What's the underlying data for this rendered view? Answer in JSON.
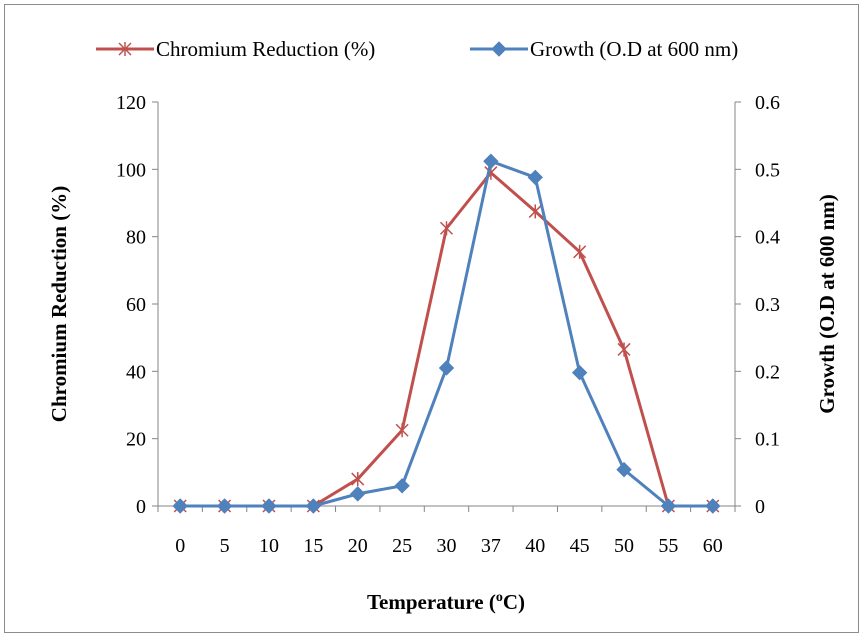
{
  "chart_data": {
    "type": "line",
    "categories": [
      "0",
      "5",
      "10",
      "15",
      "20",
      "25",
      "30",
      "37",
      "40",
      "45",
      "50",
      "55",
      "60"
    ],
    "series": [
      {
        "name": "Chromium Reduction (%)",
        "axis": "left",
        "color": "#c0504d",
        "marker": "star",
        "values": [
          0,
          0,
          0,
          0,
          8,
          22.5,
          82.5,
          99,
          87.5,
          75.5,
          46.5,
          0,
          0
        ]
      },
      {
        "name": "Growth (O.D at 600 nm)",
        "axis": "right",
        "color": "#4f81bd",
        "marker": "diamond",
        "values": [
          0,
          0,
          0,
          0,
          0.018,
          0.03,
          0.205,
          0.512,
          0.488,
          0.198,
          0.054,
          0,
          0
        ]
      }
    ],
    "xlabel": "Temperature (oC)",
    "ylabel": "Chromium Reduction (%)",
    "y2label": "Growth (O.D at 600 nm)",
    "ylim": [
      0,
      120
    ],
    "y2lim": [
      0,
      0.6
    ],
    "yticks": [
      "0",
      "20",
      "40",
      "60",
      "80",
      "100",
      "120"
    ],
    "y2ticks": [
      "0",
      "0.1",
      "0.2",
      "0.3",
      "0.4",
      "0.5",
      "0.6"
    ],
    "grid": false,
    "legend": "top"
  }
}
